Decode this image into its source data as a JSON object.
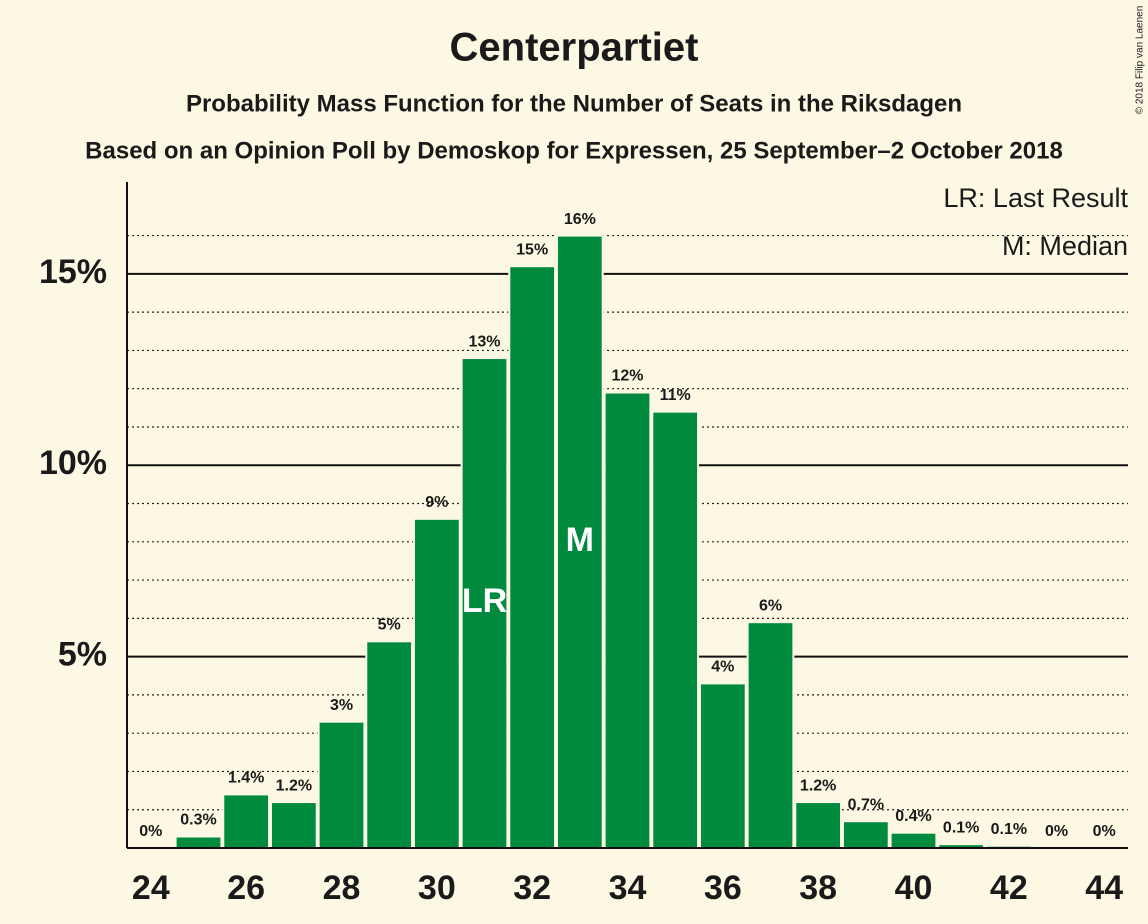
{
  "chart_data": {
    "type": "bar",
    "title": "Centerpartiet",
    "subtitle": "Probability Mass Function for the Number of Seats in the Riksdagen",
    "caption": "Based on an Opinion Poll by Demoskop for Expressen, 25 September–2 October 2018",
    "credit": "© 2018 Filip van Laenen",
    "x": [
      24,
      25,
      26,
      27,
      28,
      29,
      30,
      31,
      32,
      33,
      34,
      35,
      36,
      37,
      38,
      39,
      40,
      41,
      42,
      43,
      44
    ],
    "values": [
      0,
      0.3,
      1.4,
      1.2,
      3.3,
      5.4,
      8.6,
      12.8,
      15.2,
      16.0,
      11.9,
      11.4,
      4.3,
      5.9,
      1.2,
      0.7,
      0.4,
      0.1,
      0.06,
      0,
      0
    ],
    "value_labels": [
      "0%",
      "0.3%",
      "1.4%",
      "1.2%",
      "3%",
      "5%",
      "9%",
      "13%",
      "15%",
      "16%",
      "12%",
      "11%",
      "4%",
      "6%",
      "1.2%",
      "0.7%",
      "0.4%",
      "0.1%",
      "0.1%",
      "0%",
      "0%"
    ],
    "color": "#008a3e",
    "xlim": [
      23.5,
      44.5
    ],
    "xticks": [
      24,
      26,
      28,
      30,
      32,
      34,
      36,
      38,
      40,
      42,
      44
    ],
    "ylim": [
      0,
      17.4
    ],
    "yticks": [
      {
        "value": 5,
        "label": "5%"
      },
      {
        "value": 10,
        "label": "10%"
      },
      {
        "value": 15,
        "label": "15%"
      }
    ],
    "yminorticks": [
      1,
      2,
      3,
      4,
      6,
      7,
      8,
      9,
      11,
      12,
      13,
      14,
      16
    ],
    "grid": true,
    "annotations": [
      {
        "x": 31,
        "text": "LR"
      },
      {
        "x": 33,
        "text": "M"
      }
    ],
    "legend": [
      "LR: Last Result",
      "M: Median"
    ],
    "legend_position": "top-right"
  }
}
